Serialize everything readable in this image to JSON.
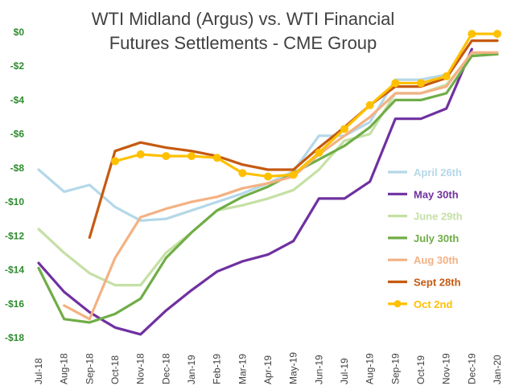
{
  "chart_data": {
    "type": "line",
    "title_lines": [
      "WTI Midland (Argus) vs. WTI Financial",
      "Futures Settlements - CME Group"
    ],
    "categories": [
      "Jul-18",
      "Aug-18",
      "Sep-18",
      "Oct-18",
      "Nov-18",
      "Dec-18",
      "Jan-19",
      "Feb-19",
      "Mar-19",
      "Apr-19",
      "May-19",
      "Jun-19",
      "Jul-19",
      "Aug-19",
      "Sep-19",
      "Oct-19",
      "Nov-19",
      "Dec-19",
      "Jan-20"
    ],
    "y_ticks": [
      0,
      -2,
      -4,
      -6,
      -8,
      -10,
      -12,
      -14,
      -16,
      -18
    ],
    "y_tick_labels": [
      "$0",
      "-$2",
      "-$4",
      "-$6",
      "-$8",
      "-$10",
      "-$12",
      "-$14",
      "-$16",
      "-$18"
    ],
    "ylim": [
      -18,
      0
    ],
    "grid": false,
    "legend_position": "right",
    "series": [
      {
        "name": "April 26th",
        "color": "#b4d8e8",
        "marker": false,
        "values": [
          -8.1,
          -9.4,
          -9.0,
          -10.3,
          -11.1,
          -11.0,
          -10.5,
          -10.0,
          -9.5,
          -8.9,
          -8.2,
          -6.1,
          -6.1,
          -5.3,
          -2.8,
          -2.8,
          -2.5,
          null,
          null
        ]
      },
      {
        "name": "May 30th",
        "color": "#7030a0",
        "marker": false,
        "values": [
          -13.6,
          -15.3,
          -16.5,
          -17.4,
          -17.8,
          -16.4,
          -15.2,
          -14.1,
          -13.5,
          -13.1,
          -12.3,
          -9.8,
          -9.8,
          -8.8,
          -5.1,
          -5.1,
          -4.5,
          -1.0,
          null
        ]
      },
      {
        "name": "June 29th",
        "color": "#c5e0a5",
        "marker": false,
        "values": [
          -11.6,
          -13.0,
          -14.2,
          -14.9,
          -14.9,
          -13.0,
          -11.8,
          -10.5,
          -10.2,
          -9.8,
          -9.3,
          -8.1,
          -6.4,
          -6.0,
          -3.6,
          -3.6,
          -3.1,
          -1.3,
          -1.3
        ]
      },
      {
        "name": "July 30th",
        "color": "#70ad47",
        "marker": false,
        "values": [
          -13.9,
          -16.9,
          -17.1,
          -16.6,
          -15.7,
          -13.3,
          -11.8,
          -10.5,
          -9.7,
          -9.1,
          -8.3,
          -7.5,
          -6.7,
          -5.6,
          -4.0,
          -4.0,
          -3.6,
          -1.4,
          -1.3
        ]
      },
      {
        "name": "Aug 30th",
        "color": "#f4b183",
        "marker": false,
        "values": [
          null,
          -16.1,
          -16.9,
          -13.3,
          -10.9,
          -10.4,
          -10.0,
          -9.7,
          -9.2,
          -8.9,
          -8.5,
          -7.2,
          -6.1,
          -5.0,
          -3.6,
          -3.6,
          -3.2,
          -1.2,
          -1.2
        ]
      },
      {
        "name": "Sept 28th",
        "color": "#c55a11",
        "marker": false,
        "values": [
          null,
          null,
          -12.1,
          -7.0,
          -6.5,
          -6.8,
          -7.0,
          -7.3,
          -7.8,
          -8.1,
          -8.1,
          -6.8,
          -5.6,
          -4.3,
          -3.2,
          -3.2,
          -2.7,
          -0.5,
          -0.5
        ]
      },
      {
        "name": "Oct 2nd",
        "color": "#ffc000",
        "marker": true,
        "values": [
          null,
          null,
          null,
          -7.6,
          -7.2,
          -7.3,
          -7.3,
          -7.4,
          -8.3,
          -8.5,
          -8.4,
          -7.1,
          -5.7,
          -4.3,
          -3.0,
          -3.0,
          -2.6,
          -0.1,
          -0.1
        ]
      }
    ]
  }
}
